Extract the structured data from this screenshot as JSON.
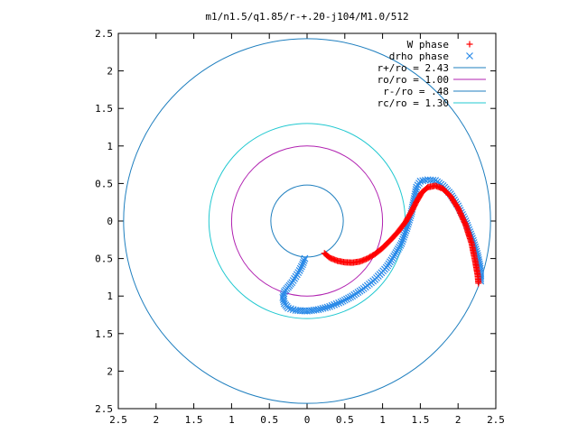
{
  "chart_data": {
    "type": "scatter",
    "title": "m1/n1.5/q1.85/r-+.20-j104/M1.0/512",
    "xlabel": "",
    "ylabel": "",
    "xlim": [
      -2.5,
      2.5
    ],
    "ylim": [
      -2.5,
      2.5
    ],
    "grid": false,
    "legend_position": "top-right",
    "x_tick_labels": [
      "2.5",
      "2",
      "1.5",
      "1",
      "0.5",
      "0",
      "0.5",
      "1",
      "1.5",
      "2",
      "2.5"
    ],
    "y_tick_labels": [
      "2.5",
      "2",
      "1.5",
      "1",
      "0.5",
      "0",
      "0.5",
      "1",
      "1.5",
      "2",
      "2.5"
    ],
    "tick_values": [
      -2.5,
      -2,
      -1.5,
      -1,
      -0.5,
      0,
      0.5,
      1,
      1.5,
      2,
      2.5
    ],
    "circles": [
      {
        "name": "r+/ro = 2.43",
        "radius": 2.43,
        "color": "#1f7fbf"
      },
      {
        "name": "ro/ro = 1.00",
        "radius": 1.0,
        "color": "#b020b0"
      },
      {
        "name": "r-/ro = .48",
        "radius": 0.48,
        "color": "#1f7fbf"
      },
      {
        "name": "rc/ro = 1.30",
        "radius": 1.3,
        "color": "#20c8d0"
      }
    ],
    "series": [
      {
        "name": "W phase",
        "marker": "plus",
        "color": "#ff0000",
        "x": [
          0.23,
          0.3,
          0.4,
          0.5,
          0.6,
          0.7,
          0.8,
          0.9,
          1.0,
          1.1,
          1.2,
          1.3,
          1.38,
          1.45,
          1.52,
          1.6,
          1.7,
          1.8,
          1.9,
          2.0,
          2.1,
          2.18,
          2.23,
          2.26,
          2.27
        ],
        "y": [
          -0.43,
          -0.49,
          -0.53,
          -0.55,
          -0.555,
          -0.54,
          -0.5,
          -0.44,
          -0.36,
          -0.26,
          -0.15,
          -0.02,
          0.12,
          0.26,
          0.38,
          0.45,
          0.47,
          0.43,
          0.33,
          0.17,
          -0.05,
          -0.3,
          -0.55,
          -0.72,
          -0.83
        ]
      },
      {
        "name": "drho phase",
        "marker": "cross",
        "color": "#2a8ae8",
        "x": [
          -0.03,
          -0.06,
          -0.1,
          -0.15,
          -0.2,
          -0.25,
          -0.3,
          -0.32,
          -0.3,
          -0.25,
          -0.15,
          0.0,
          0.15,
          0.3,
          0.45,
          0.6,
          0.75,
          0.9,
          1.05,
          1.15,
          1.25,
          1.32,
          1.38,
          1.42,
          1.45,
          1.5,
          1.6,
          1.7,
          1.8,
          1.9,
          2.0,
          2.1,
          2.2,
          2.26,
          2.29,
          2.3,
          2.3
        ],
        "y": [
          -0.5,
          -0.58,
          -0.66,
          -0.74,
          -0.82,
          -0.88,
          -0.94,
          -1.02,
          -1.1,
          -1.16,
          -1.19,
          -1.2,
          -1.18,
          -1.14,
          -1.08,
          -1.0,
          -0.9,
          -0.78,
          -0.62,
          -0.47,
          -0.3,
          -0.1,
          0.1,
          0.3,
          0.45,
          0.53,
          0.55,
          0.54,
          0.47,
          0.36,
          0.2,
          0.0,
          -0.26,
          -0.46,
          -0.6,
          -0.72,
          -0.8
        ]
      }
    ]
  }
}
